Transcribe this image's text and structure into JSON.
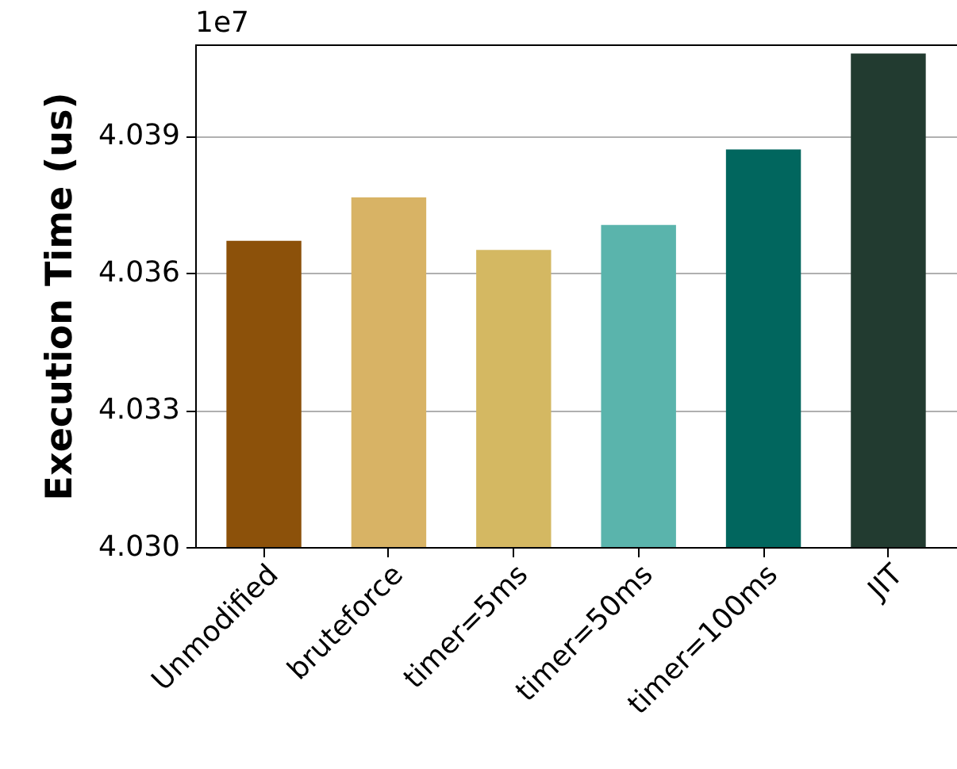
{
  "chart_data": {
    "type": "bar",
    "ylabel": "Execution Time (us)",
    "annotations": [
      "1e7"
    ],
    "categories": [
      "Unmodified",
      "bruteforce",
      "timer=5ms",
      "timer=50ms",
      "timer=100ms",
      "JIT"
    ],
    "values": [
      4.0367,
      4.03765,
      4.0365,
      4.03705,
      4.0387,
      4.0408
    ],
    "colors": [
      "#8c510a",
      "#d8b365",
      "#d4b862",
      "#5ab4ac",
      "#01665e",
      "#223b30"
    ],
    "ylim": [
      4.03,
      4.041
    ],
    "yticks": [
      {
        "value": 4.03,
        "label": "4.030"
      },
      {
        "value": 4.033,
        "label": "4.033"
      },
      {
        "value": 4.036,
        "label": "4.036"
      },
      {
        "value": 4.039,
        "label": "4.039"
      }
    ],
    "grid": "y"
  }
}
